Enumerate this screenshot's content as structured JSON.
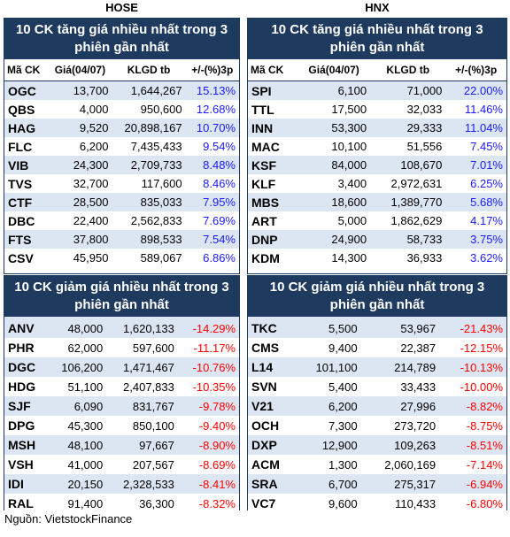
{
  "hose_label": "HOSE",
  "hnx_label": "HNX",
  "source": "Nguồn: VietstockFinance",
  "hose_up": {
    "title": "10 CK tăng giá nhiều nhất trong 3 phiên gần nhất",
    "headers": [
      "Mã CK",
      "Giá(04/07)",
      "KLGD tb",
      "+/-(%)3p"
    ],
    "rows": [
      [
        "OGC",
        "13,700",
        "1,644,267",
        "15.13%"
      ],
      [
        "QBS",
        "4,000",
        "950,600",
        "12.68%"
      ],
      [
        "HAG",
        "9,520",
        "20,898,167",
        "10.70%"
      ],
      [
        "FLC",
        "6,200",
        "7,435,433",
        "9.54%"
      ],
      [
        "VIB",
        "24,300",
        "2,709,733",
        "8.48%"
      ],
      [
        "TVS",
        "32,700",
        "117,600",
        "8.46%"
      ],
      [
        "CTF",
        "28,500",
        "835,033",
        "7.95%"
      ],
      [
        "DBC",
        "22,400",
        "2,562,833",
        "7.69%"
      ],
      [
        "FTS",
        "37,800",
        "898,533",
        "7.54%"
      ],
      [
        "CSV",
        "45,950",
        "589,067",
        "6.86%"
      ]
    ]
  },
  "hnx_up": {
    "title": "10 CK tăng giá nhiều nhất trong 3 phiên gần nhất",
    "headers": [
      "Mã CK",
      "Giá(04/07)",
      "KLGD tb",
      "+/-(%)3p"
    ],
    "rows": [
      [
        "SPI",
        "6,100",
        "71,000",
        "22.00%"
      ],
      [
        "TTL",
        "17,500",
        "32,033",
        "11.46%"
      ],
      [
        "INN",
        "53,300",
        "29,333",
        "11.04%"
      ],
      [
        "MAC",
        "10,100",
        "51,556",
        "7.45%"
      ],
      [
        "KSF",
        "84,000",
        "108,670",
        "7.01%"
      ],
      [
        "KLF",
        "3,400",
        "2,972,631",
        "6.25%"
      ],
      [
        "MBS",
        "18,600",
        "1,389,770",
        "5.68%"
      ],
      [
        "ART",
        "5,000",
        "1,862,629",
        "4.17%"
      ],
      [
        "DNP",
        "24,900",
        "58,733",
        "3.75%"
      ],
      [
        "KDM",
        "14,300",
        "36,933",
        "3.62%"
      ]
    ]
  },
  "hose_down": {
    "title": "10 CK giảm giá nhiều nhất trong 3 phiên gần nhất",
    "rows": [
      [
        "ANV",
        "48,000",
        "1,620,133",
        "-14.29%"
      ],
      [
        "PHR",
        "62,000",
        "597,600",
        "-11.17%"
      ],
      [
        "DGC",
        "106,200",
        "1,471,467",
        "-10.76%"
      ],
      [
        "HDG",
        "51,100",
        "2,407,833",
        "-10.35%"
      ],
      [
        "SJF",
        "6,090",
        "831,767",
        "-9.78%"
      ],
      [
        "DPG",
        "45,300",
        "850,100",
        "-9.40%"
      ],
      [
        "MSH",
        "48,100",
        "97,667",
        "-8.90%"
      ],
      [
        "VSH",
        "41,000",
        "207,567",
        "-8.69%"
      ],
      [
        "IDI",
        "20,150",
        "2,328,533",
        "-8.41%"
      ],
      [
        "RAL",
        "91,400",
        "36,300",
        "-8.32%"
      ]
    ]
  },
  "hnx_down": {
    "title": "10 CK giảm giá nhiều nhất trong 3 phiên gần nhất",
    "rows": [
      [
        "TKC",
        "5,500",
        "53,967",
        "-21.43%"
      ],
      [
        "CMS",
        "9,400",
        "22,387",
        "-12.15%"
      ],
      [
        "L14",
        "101,100",
        "214,789",
        "-10.13%"
      ],
      [
        "SVN",
        "5,400",
        "33,433",
        "-10.00%"
      ],
      [
        "V21",
        "6,200",
        "27,996",
        "-8.82%"
      ],
      [
        "OCH",
        "7,300",
        "273,720",
        "-8.75%"
      ],
      [
        "DXP",
        "12,900",
        "109,263",
        "-8.51%"
      ],
      [
        "ACM",
        "1,300",
        "2,060,169",
        "-7.14%"
      ],
      [
        "SRA",
        "6,700",
        "275,317",
        "-6.94%"
      ],
      [
        "VC7",
        "9,600",
        "110,433",
        "-6.80%"
      ]
    ]
  },
  "colors": {
    "header_bg": "#1f3a5f",
    "row_alt_bg": "#dce6f2",
    "positive": "#1a1aff",
    "negative": "#ff0000"
  }
}
